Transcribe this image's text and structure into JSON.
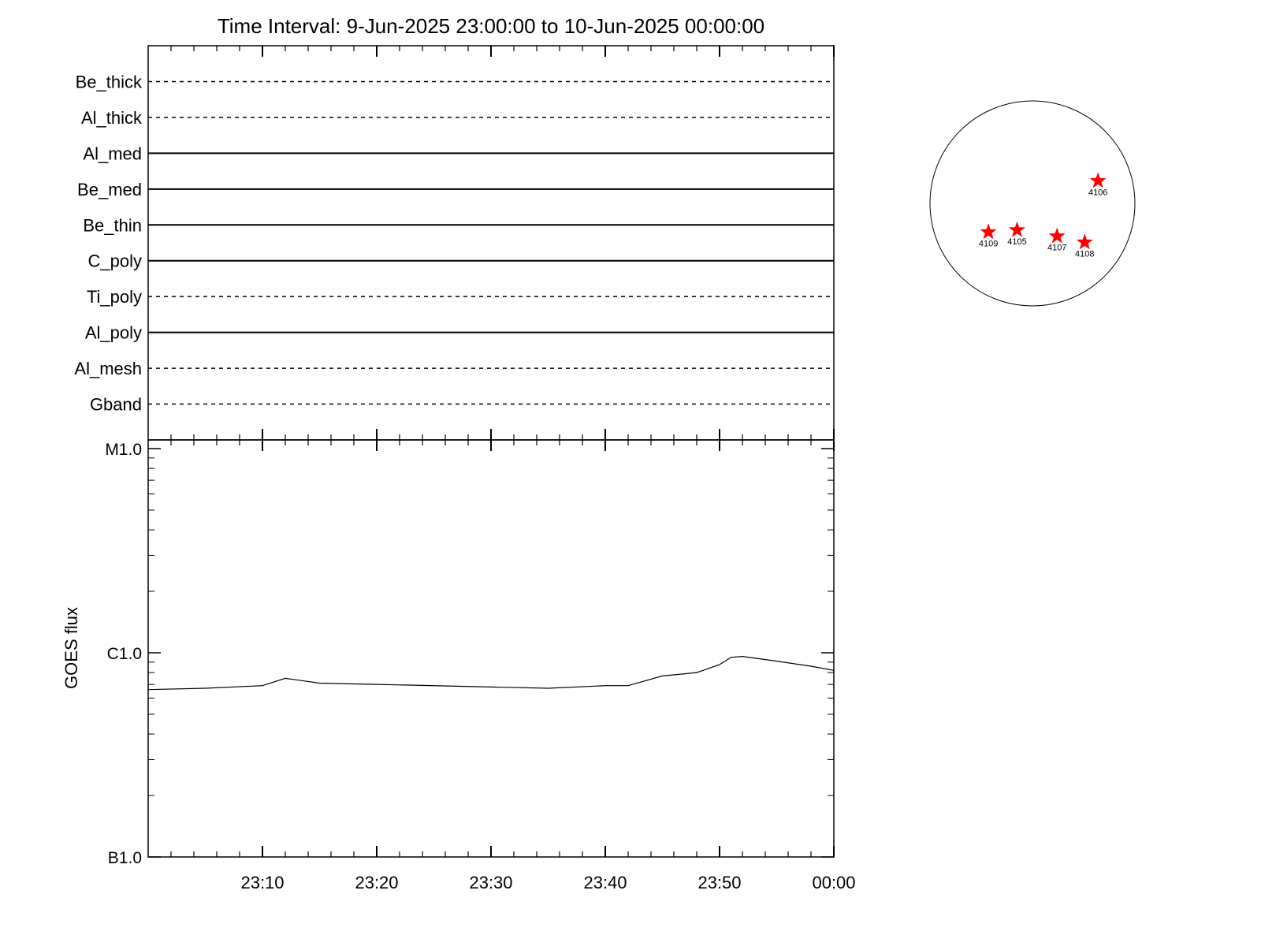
{
  "chart_data": [
    {
      "type": "timeline",
      "title": "Time Interval:  9-Jun-2025 23:00:00 to 10-Jun-2025 00:00:00",
      "categories": [
        "Be_thick",
        "Al_thick",
        "Al_med",
        "Be_med",
        "Be_thin",
        "C_poly",
        "Ti_poly",
        "Al_poly",
        "Al_mesh",
        "Gband"
      ],
      "styles": [
        "dashed",
        "dashed",
        "solid",
        "solid",
        "solid",
        "solid",
        "dashed",
        "solid",
        "dashed",
        "dashed"
      ],
      "xlim": [
        "23:00",
        "00:00"
      ],
      "xticks": [
        "23:10",
        "23:20",
        "23:30",
        "23:40",
        "23:50",
        "00:00"
      ]
    },
    {
      "type": "line",
      "ylabel": "GOES flux",
      "x": [
        "23:00",
        "23:05",
        "23:10",
        "23:12",
        "23:15",
        "23:20",
        "23:30",
        "23:35",
        "23:40",
        "23:42",
        "23:45",
        "23:48",
        "23:50",
        "23:51",
        "23:52",
        "23:55",
        "23:58",
        "00:00"
      ],
      "values": [
        6.6e-07,
        6.7e-07,
        6.9e-07,
        7.5e-07,
        7.1e-07,
        7e-07,
        6.8e-07,
        6.7e-07,
        6.9e-07,
        6.9e-07,
        7.7e-07,
        8e-07,
        8.75e-07,
        9.5e-07,
        9.6e-07,
        9.1e-07,
        8.6e-07,
        8.2e-07
      ],
      "color": "#000000",
      "log_y": true,
      "xlim": [
        "23:00",
        "00:00"
      ],
      "xticks": [
        "23:10",
        "23:20",
        "23:30",
        "23:40",
        "23:50",
        "00:00"
      ],
      "ylim": [
        1e-07,
        1e-05
      ],
      "yticks": [
        {
          "value": 1e-07,
          "label": "B1.0"
        },
        {
          "value": 1e-06,
          "label": "C1.0"
        },
        {
          "value": 1e-05,
          "label": "M1.0"
        }
      ]
    },
    {
      "type": "scatter",
      "labels": [
        "4106",
        "4109",
        "4105",
        "4107",
        "4108"
      ],
      "x": [
        0.64,
        -0.43,
        -0.15,
        0.24,
        0.51
      ],
      "y": [
        0.22,
        -0.28,
        -0.26,
        -0.32,
        -0.38
      ],
      "color": "#ff0000",
      "xlim": [
        -1,
        1
      ],
      "ylim": [
        -1,
        1
      ]
    }
  ]
}
